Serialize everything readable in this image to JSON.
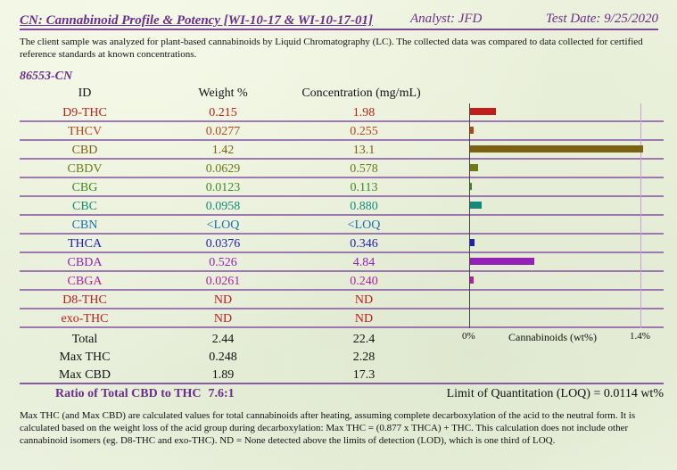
{
  "header": {
    "title": "CN: Cannabinoid Profile & Potency [WI-10-17 & WI-10-17-01]",
    "analyst": "Analyst: JFD",
    "test_date": "Test Date: 9/25/2020"
  },
  "description": "The client sample was analyzed for plant-based cannabinoids by Liquid Chromatography (LC).  The collected data was compared to data collected for certified reference standards at known concentrations.",
  "sample_id": "86553-CN",
  "columns": {
    "id": "ID",
    "weight": "Weight %",
    "concentration": "Concentration (mg/mL)"
  },
  "rows": [
    {
      "id": "D9-THC",
      "weight": "0.215",
      "conc": "1.98",
      "color": "#c0201c",
      "bar": 0.215
    },
    {
      "id": "THCV",
      "weight": "0.0277",
      "conc": "0.255",
      "color": "#b5451b",
      "bar": 0.0277
    },
    {
      "id": "CBD",
      "weight": "1.42",
      "conc": "13.1",
      "color": "#7a6210",
      "bar": 1.42
    },
    {
      "id": "CBDV",
      "weight": "0.0629",
      "conc": "0.578",
      "color": "#6d7a16",
      "bar": 0.0629
    },
    {
      "id": "CBG",
      "weight": "0.0123",
      "conc": "0.113",
      "color": "#3f8a1e",
      "bar": 0.0123
    },
    {
      "id": "CBC",
      "weight": "0.0958",
      "conc": "0.880",
      "color": "#138a7a",
      "bar": 0.0958
    },
    {
      "id": "CBN",
      "weight": "<LOQ",
      "conc": "<LOQ",
      "color": "#1a6fb0",
      "bar": 0.0
    },
    {
      "id": "THCA",
      "weight": "0.0376",
      "conc": "0.346",
      "color": "#2020b8",
      "bar": 0.0376
    },
    {
      "id": "CBDA",
      "weight": "0.526",
      "conc": "4.84",
      "color": "#9420b8",
      "bar": 0.526
    },
    {
      "id": "CBGA",
      "weight": "0.0261",
      "conc": "0.240",
      "color": "#b020a0",
      "bar": 0.0261
    },
    {
      "id": "D8-THC",
      "weight": "ND",
      "conc": "ND",
      "color": "#c01c1c",
      "bar": 0.0
    },
    {
      "id": "exo-THC",
      "weight": "ND",
      "conc": "ND",
      "color": "#c01c1c",
      "bar": 0.0
    }
  ],
  "summary": [
    {
      "id": "Total",
      "weight": "2.44",
      "conc": "22.4"
    },
    {
      "id": "Max THC",
      "weight": "0.248",
      "conc": "2.28"
    },
    {
      "id": "Max CBD",
      "weight": "1.89",
      "conc": "17.3"
    }
  ],
  "chart": {
    "axis_min": "0%",
    "axis_label": "Cannabinoids (wt%)",
    "axis_max": "1.4%",
    "max_value": 1.4
  },
  "ratio": {
    "label": "Ratio of Total CBD to THC",
    "value": "7.6:1"
  },
  "loq": "Limit of Quantitation (LOQ) = 0.0114 wt%",
  "footnote": "Max THC (and Max CBD) are calculated values for total cannabinoids after heating, assuming complete decarboxylation of the acid to the neutral form. It is calculated based on the weight loss of the acid group during decarboxylation:  Max THC = (0.877 x THCA) + THC.  This calculation does not include other cannabinoid isomers (eg. D8-THC and exo-THC).  ND = None detected above the limits of detection (LOD), which is one third of LOQ."
}
